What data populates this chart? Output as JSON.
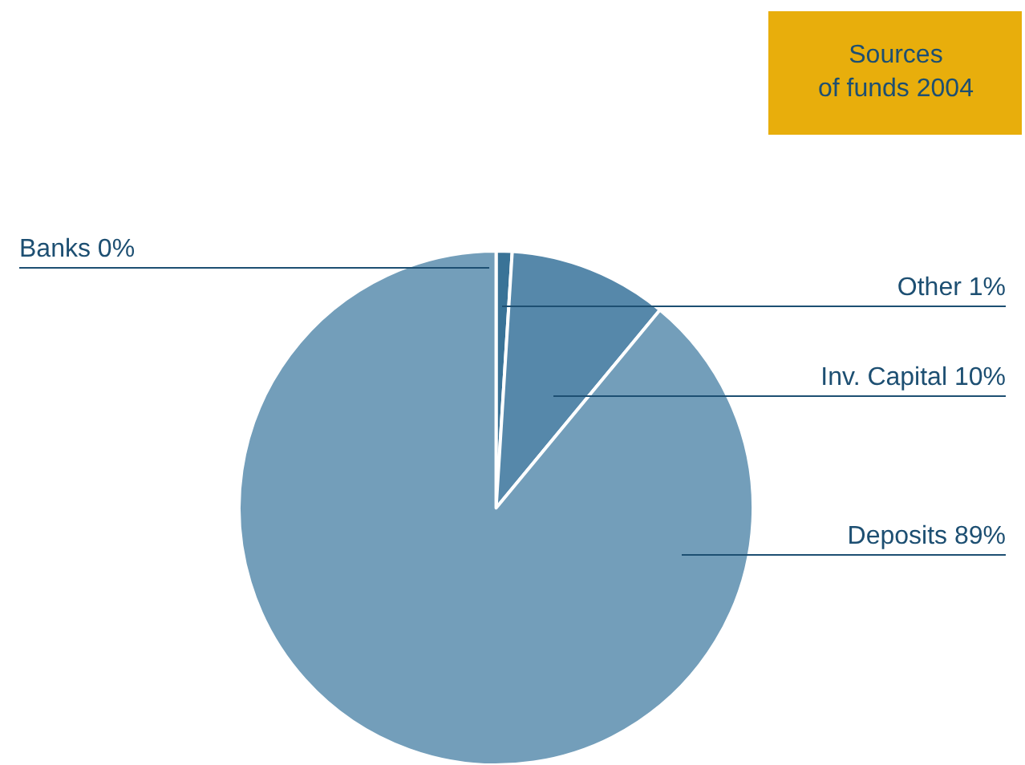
{
  "chart_data": {
    "type": "pie",
    "title": "Sources\nof funds 2004",
    "categories": [
      "Banks",
      "Other",
      "Inv. Capital",
      "Deposits"
    ],
    "values": [
      0,
      1,
      10,
      89
    ],
    "colors": [
      "#2f6a8f",
      "#3a7397",
      "#5688aa",
      "#739eba"
    ],
    "value_labels": [
      "0%",
      "1%",
      "10%",
      "89%"
    ],
    "legend": false
  }
}
